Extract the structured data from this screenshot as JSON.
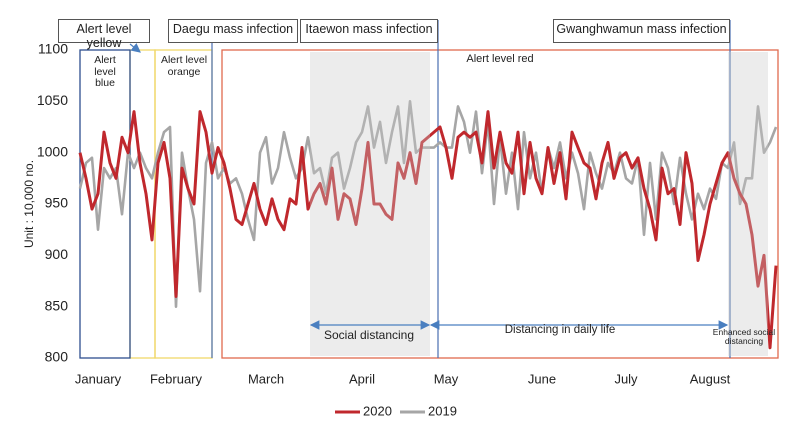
{
  "chart_data": {
    "type": "line",
    "ylabel": "Unit : 10,000 no.",
    "ylim": [
      800,
      1100
    ],
    "yticks": [
      800,
      850,
      900,
      950,
      1000,
      1050,
      1100
    ],
    "categories": [
      null,
      null,
      null,
      "January",
      null,
      null,
      null,
      null,
      null,
      null,
      null,
      null,
      null,
      null,
      null,
      null,
      "February",
      null,
      null,
      null,
      null,
      null,
      null,
      null,
      null,
      null,
      null,
      null,
      null,
      null,
      null,
      "March",
      null,
      null,
      null,
      null,
      null,
      null,
      null,
      null,
      null,
      null,
      null,
      null,
      null,
      null,
      null,
      "April",
      null,
      null,
      null,
      null,
      null,
      null,
      null,
      null,
      null,
      null,
      null,
      null,
      null,
      "May",
      null,
      null,
      null,
      null,
      null,
      null,
      null,
      null,
      null,
      null,
      null,
      null,
      null,
      null,
      null,
      "June",
      null,
      null,
      null,
      null,
      null,
      null,
      null,
      null,
      null,
      null,
      null,
      null,
      null,
      "July",
      null,
      null,
      null,
      null,
      null,
      null,
      null,
      null,
      null,
      null,
      null,
      null,
      null,
      "August",
      null,
      null,
      null,
      null,
      null,
      null,
      null,
      null,
      null,
      null,
      null
    ],
    "series": [
      {
        "name": "2020",
        "color": "#c0282d",
        "values": [
          1000,
          975,
          945,
          960,
          1020,
          990,
          975,
          1015,
          1000,
          1040,
          990,
          960,
          915,
          990,
          1010,
          975,
          860,
          985,
          965,
          950,
          1040,
          1020,
          980,
          1005,
          990,
          965,
          935,
          930,
          950,
          970,
          945,
          930,
          955,
          935,
          925,
          955,
          950,
          1005,
          945,
          960,
          970,
          950,
          985,
          935,
          960,
          955,
          930,
          965,
          1010,
          950,
          950,
          940,
          935,
          990,
          975,
          1000,
          970,
          1010,
          1015,
          1020,
          1025,
          1005,
          975,
          1015,
          1020,
          1015,
          1020,
          990,
          1040,
          985,
          1020,
          990,
          980,
          1020,
          960,
          1010,
          975,
          960,
          1005,
          970,
          1000,
          955,
          1020,
          1005,
          990,
          985,
          955,
          990,
          1010,
          975,
          995,
          1000,
          985,
          995,
          965,
          945,
          915,
          985,
          960,
          965,
          930,
          1000,
          970,
          895,
          920,
          950,
          970,
          990,
          1000,
          975,
          960,
          950,
          920,
          870,
          900,
          810,
          890
        ]
      },
      {
        "name": "2019",
        "color": "#a6a6a6",
        "values": [
          965,
          990,
          995,
          925,
          985,
          975,
          985,
          940,
          1000,
          985,
          1000,
          985,
          975,
          1000,
          1020,
          1025,
          850,
          1000,
          965,
          935,
          865,
          990,
          1010,
          975,
          985,
          970,
          975,
          960,
          935,
          915,
          1000,
          1015,
          970,
          985,
          1020,
          995,
          975,
          985,
          1015,
          980,
          985,
          960,
          995,
          1000,
          965,
          985,
          1010,
          1020,
          1045,
          1005,
          1030,
          990,
          1020,
          1045,
          990,
          1050,
          1000,
          1005,
          1005,
          1005,
          1010,
          1005,
          1005,
          1045,
          1030,
          1000,
          1040,
          980,
          1030,
          950,
          1015,
          960,
          1000,
          945,
          1020,
          975,
          1000,
          960,
          1005,
          985,
          1010,
          975,
          1000,
          980,
          945,
          1000,
          980,
          965,
          990,
          980,
          1000,
          975,
          970,
          995,
          920,
          990,
          935,
          1000,
          985,
          950,
          995,
          960,
          935,
          960,
          945,
          965,
          955,
          990,
          985,
          1010,
          950,
          975,
          975,
          1045,
          1000,
          1010,
          1025
        ]
      }
    ],
    "annotations": [
      "Alert level yellow",
      "Daegu mass infection",
      "Itaewon mass infection",
      "Gwanghwamun mass infection",
      "Alert level blue",
      "Alert level orange",
      "Alert level red",
      "Social distancing",
      "Distancing in daily life",
      "Enhanced social distancing"
    ]
  }
}
